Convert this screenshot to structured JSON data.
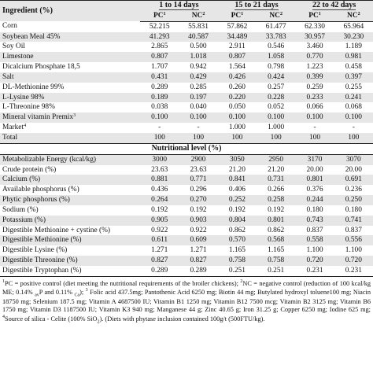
{
  "header": {
    "ingredient_label": "Ingredient (%)",
    "periods": [
      "1 to 14 days",
      "15 to 21 days",
      "22 to 42 days"
    ],
    "pc_label": "PC",
    "pc_sup": "1",
    "nc_label": "NC",
    "nc_sup": "2"
  },
  "ingredients": [
    {
      "name": "Corn",
      "sup": "",
      "values": [
        "52.215",
        "55.831",
        "57.862",
        "61.477",
        "62.330",
        "65.964"
      ]
    },
    {
      "name": "Soybean Meal 45%",
      "sup": "",
      "values": [
        "41.293",
        "40.587",
        "34.489",
        "33.783",
        "30.957",
        "30.230"
      ]
    },
    {
      "name": "Soy Oil",
      "sup": "",
      "values": [
        "2.865",
        "0.500",
        "2.911",
        "0.546",
        "3.460",
        "1.189"
      ]
    },
    {
      "name": "Limestone",
      "sup": "",
      "values": [
        "0.807",
        "1.018",
        "0.807",
        "1.058",
        "0.770",
        "0.981"
      ]
    },
    {
      "name": "Dicalcium Phosphate 18,5",
      "sup": "",
      "values": [
        "1.707",
        "0.942",
        "1.564",
        "0.798",
        "1.223",
        "0.458"
      ]
    },
    {
      "name": "Salt",
      "sup": "",
      "values": [
        "0.431",
        "0.429",
        "0.426",
        "0.424",
        "0.399",
        "0.397"
      ]
    },
    {
      "name": "DL-Methionine 99%",
      "sup": "",
      "values": [
        "0.289",
        "0.285",
        "0.260",
        "0.257",
        "0.259",
        "0.255"
      ]
    },
    {
      "name": "L-Lysine 98%",
      "sup": "",
      "values": [
        "0.189",
        "0.197",
        "0.220",
        "0.228",
        "0.233",
        "0.241"
      ]
    },
    {
      "name": "L-Threonine 98%",
      "sup": "",
      "values": [
        "0.038",
        "0.040",
        "0.050",
        "0.052",
        "0.066",
        "0.068"
      ]
    },
    {
      "name": "Mineral vitamin Premix",
      "sup": "3",
      "values": [
        "0.100",
        "0.100",
        "0.100",
        "0.100",
        "0.100",
        "0.100"
      ]
    },
    {
      "name": "Market",
      "sup": "4",
      "values": [
        "-",
        "-",
        "1.000",
        "1.000",
        "-",
        "-"
      ]
    },
    {
      "name": "Total",
      "sup": "",
      "values": [
        "100",
        "100",
        "100",
        "100",
        "100",
        "100"
      ]
    }
  ],
  "nutritional_label": "Nutritional level (%)",
  "nutrients": [
    {
      "name": "Metabolizable Energy (kcal/kg)",
      "values": [
        "3000",
        "2900",
        "3050",
        "2950",
        "3170",
        "3070"
      ]
    },
    {
      "name": "Crude protein (%)",
      "values": [
        "23.63",
        "23.63",
        "21.20",
        "21.20",
        "20.00",
        "20.00"
      ]
    },
    {
      "name": "Calcium (%)",
      "values": [
        "0.881",
        "0.771",
        "0.841",
        "0.731",
        "0.801",
        "0.691"
      ]
    },
    {
      "name": "Available phosphorus (%)",
      "values": [
        "0.436",
        "0.296",
        "0.406",
        "0.266",
        "0.376",
        "0.236"
      ]
    },
    {
      "name": "Phytic phosphorus (%)",
      "values": [
        "0.264",
        "0.270",
        "0.252",
        "0.258",
        "0.244",
        "0.250"
      ]
    },
    {
      "name": "Sodium (%)",
      "values": [
        "0.192",
        "0.192",
        "0.192",
        "0.192",
        "0.180",
        "0.180"
      ]
    },
    {
      "name": "Potassium (%)",
      "values": [
        "0.905",
        "0.903",
        "0.804",
        "0.801",
        "0.743",
        "0.741"
      ]
    },
    {
      "name": "Digestible Methionine + cystine (%)",
      "values": [
        "0.922",
        "0.922",
        "0.862",
        "0.862",
        "0.837",
        "0.837"
      ]
    },
    {
      "name": "Digestible Methionine (%)",
      "values": [
        "0.611",
        "0.609",
        "0.570",
        "0.568",
        "0.558",
        "0.556"
      ]
    },
    {
      "name": "Digestible Lysine (%)",
      "values": [
        "1.271",
        "1.271",
        "1.165",
        "1.165",
        "1.100",
        "1.100"
      ]
    },
    {
      "name": "Digestible Threonine (%)",
      "values": [
        "0.827",
        "0.827",
        "0.758",
        "0.758",
        "0.720",
        "0.720"
      ]
    },
    {
      "name": "Digestible Tryptophan (%)",
      "values": [
        "0.289",
        "0.289",
        "0.251",
        "0.251",
        "0.231",
        "0.231"
      ]
    }
  ],
  "footnote": {
    "n1": "1",
    "t1": "PC = positive control (diet meeting the nutritional requirements of the broiler chickens); ",
    "n2": "2",
    "t2": "NC = negative control (reduction of 100 kcal/kg ME; 0.14% ",
    "s_av": "av",
    "t3": "P and 0.11% ",
    "s_ca": "Ca",
    "t4": "); ",
    "n3": "3",
    "t5": " Folic acid 437.5mg; Pantothenic Acid 6250 mg; Biotin 44 mg; Butylated hydroxyl toluene100 mg; Niacin 18750 mg; Selenium 187.5 mg; Vitamin A 4687500 IU; Vitamin B1 1250 mg; Vitamin B12 7500 mcg; Vitamin B2 3125 mg; Vitamin B6 1750 mg; Vitamin D3 1187500 IU; Vitamin K3 940 mg; Manganese 44 g; Zinc 40.65 g; Iron 31.25 g; Copper 6250 mg; Iodine 625 mg; ",
    "n4": "4",
    "t6": "Source of silica - Celite (100% SiO",
    "s_2": "2",
    "t7": "). (Diets with phytase inclusion contained 100g/t (500FTU/kg)."
  }
}
